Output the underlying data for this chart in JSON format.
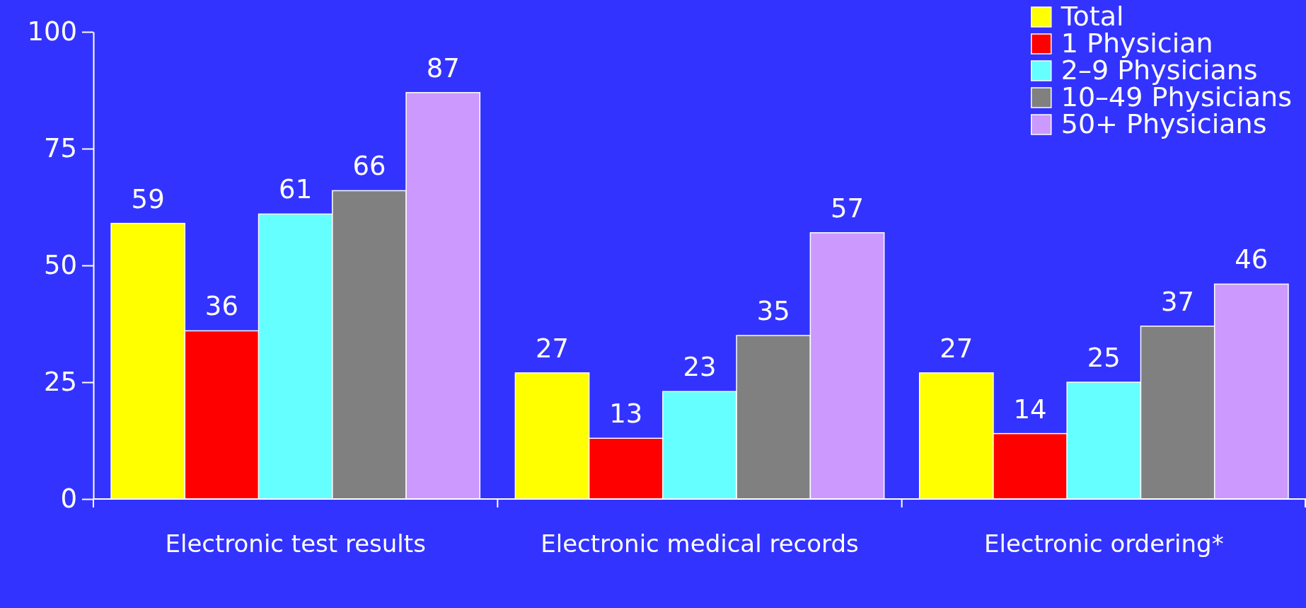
{
  "chart_data": {
    "type": "bar",
    "categories": [
      "Electronic test results",
      "Electronic medical records",
      "Electronic ordering*"
    ],
    "series": [
      {
        "name": "Total",
        "color": "#ffff00",
        "values": [
          59,
          27,
          27
        ]
      },
      {
        "name": "1 Physician",
        "color": "#ff0000",
        "values": [
          36,
          13,
          14
        ]
      },
      {
        "name": "2–9 Physicians",
        "color": "#66ffff",
        "values": [
          61,
          23,
          25
        ]
      },
      {
        "name": "10–49 Physicians",
        "color": "#808080",
        "values": [
          66,
          35,
          37
        ]
      },
      {
        "name": "50+ Physicians",
        "color": "#cc99ff",
        "values": [
          87,
          57,
          46
        ]
      }
    ],
    "ylim": [
      0,
      100
    ],
    "yticks": [
      0,
      25,
      50,
      75,
      100
    ],
    "data_labels": true,
    "legend": "top right",
    "grid": false
  }
}
